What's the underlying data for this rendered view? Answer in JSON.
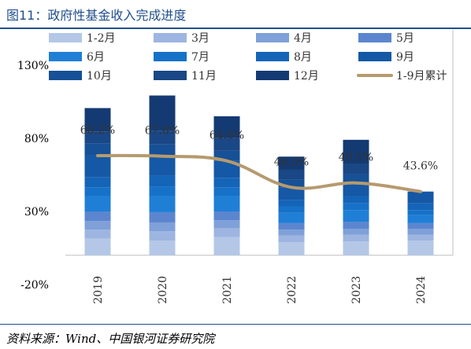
{
  "title": "图11：政府性基金收入完成进度",
  "source": "资料来源：Wind、中国银河证券研究院",
  "chart_data": {
    "type": "bar",
    "stacked": true,
    "categories": [
      "2019",
      "2020",
      "2021",
      "2022",
      "2023",
      "2024"
    ],
    "ylim": [
      -20,
      130
    ],
    "yticks": [
      "-20%",
      "30%",
      "80%",
      "130%"
    ],
    "ytick_values": [
      -20,
      30,
      80,
      130
    ],
    "legend_position": "top",
    "series": [
      {
        "name": "1-2月",
        "color": "#b4c7e7",
        "values": [
          11.5,
          10.0,
          12.5,
          9.0,
          9.5,
          10.0
        ]
      },
      {
        "name": "3月",
        "color": "#9db5e0",
        "values": [
          6.0,
          6.5,
          6.0,
          4.5,
          4.5,
          4.0
        ]
      },
      {
        "name": "4月",
        "color": "#7fa0d8",
        "values": [
          6.0,
          6.0,
          5.5,
          4.0,
          4.0,
          4.0
        ]
      },
      {
        "name": "5月",
        "color": "#5b86cf",
        "values": [
          6.5,
          7.0,
          6.0,
          4.5,
          5.0,
          4.0
        ]
      },
      {
        "name": "6月",
        "color": "#1f7fd6",
        "values": [
          10.5,
          11.0,
          10.5,
          7.0,
          8.0,
          5.5
        ]
      },
      {
        "name": "7月",
        "color": "#1671c8",
        "values": [
          6.0,
          6.5,
          6.0,
          4.5,
          4.5,
          3.5
        ]
      },
      {
        "name": "8月",
        "color": "#1464b8",
        "values": [
          7.0,
          7.5,
          6.5,
          4.5,
          5.0,
          4.5
        ]
      },
      {
        "name": "9月",
        "color": "#1558a6",
        "values": [
          14.7,
          13.3,
          11.6,
          8.5,
          9.0,
          8.1
        ]
      },
      {
        "name": "10月",
        "color": "#165096",
        "values": [
          8.5,
          8.0,
          7.0,
          5.5,
          6.0,
          0
        ]
      },
      {
        "name": "11月",
        "color": "#1a4785",
        "values": [
          8.0,
          9.5,
          8.5,
          6.5,
          7.0,
          0
        ]
      },
      {
        "name": "12月",
        "color": "#143a73",
        "values": [
          16.0,
          24.0,
          15.0,
          9.0,
          16.5,
          0
        ]
      }
    ],
    "line": {
      "name": "1-9月累计",
      "color": "#b69a6e",
      "values": [
        68.2,
        67.8,
        64.6,
        46.5,
        49.5,
        43.6
      ],
      "labels": [
        "68.2%",
        "67.8%",
        "64.6%",
        "46.5%",
        "49.5%",
        "43.6%"
      ]
    }
  }
}
